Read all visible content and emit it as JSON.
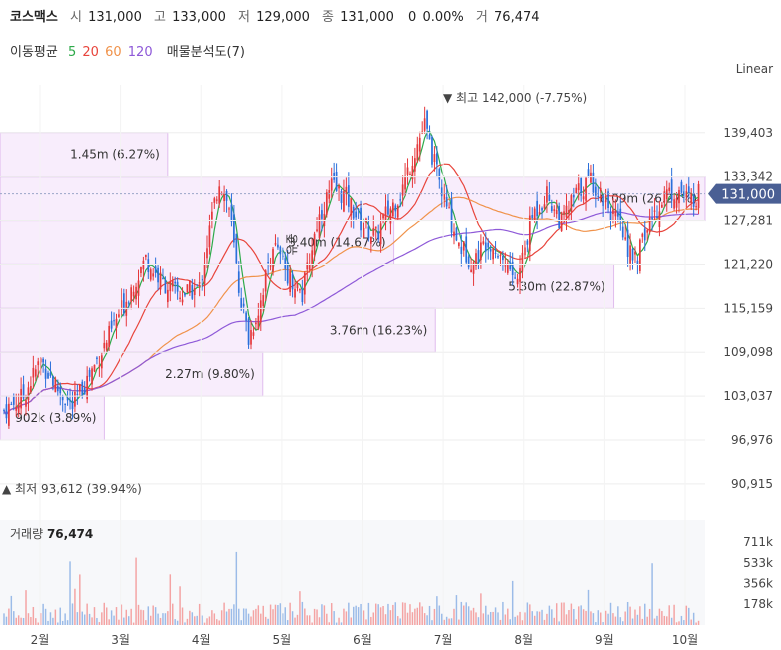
{
  "header": {
    "name": "코스맥스",
    "open_label": "시",
    "open": "131,000",
    "high_label": "고",
    "high": "133,000",
    "low_label": "저",
    "low": "129,000",
    "close_label": "종",
    "close": "131,000",
    "change": "0",
    "change_pct": "0.00%",
    "volume_label": "거",
    "volume": "76,474"
  },
  "indicators": {
    "ma_label": "이동평균",
    "ma": [
      {
        "period": "5",
        "color": "#2eaa4a"
      },
      {
        "period": "20",
        "color": "#e8453c"
      },
      {
        "period": "60",
        "color": "#f0924a"
      },
      {
        "period": "120",
        "color": "#8e59d8"
      }
    ],
    "profile_label": "매물분석도(7)"
  },
  "scale_label": "Linear",
  "chart_data": {
    "type": "candlestick",
    "y_ticks": [
      "139,403",
      "133,342",
      "127,281",
      "121,220",
      "115,159",
      "109,098",
      "103,037",
      "96,976",
      "90,915"
    ],
    "y_tick_values": [
      139403,
      133342,
      127281,
      121220,
      115159,
      109098,
      103037,
      96976,
      90915
    ],
    "ylim": [
      88000,
      146000
    ],
    "x_ticks": [
      "2월",
      "3월",
      "4월",
      "5월",
      "6월",
      "7월",
      "8월",
      "9월",
      "10월"
    ],
    "current_price": "131,000",
    "current_price_value": 131000,
    "high_marker": "최고 142,000 (-7.75%)",
    "high_value": 142000,
    "low_marker": "최저 93,612 (39.94%)",
    "low_value": 93612,
    "volume_title": "거래량",
    "volume_value": "76,474",
    "volume_ticks": [
      "711k",
      "533k",
      "356k",
      "178k"
    ],
    "volume_tick_values": [
      711000,
      533000,
      356000,
      178000
    ],
    "volume_max": 900000,
    "volume_profile": [
      {
        "label": "1.45m (6.27%)",
        "from": 133342,
        "to": 139403,
        "volume": 1450000
      },
      {
        "label": "6.09m (26.27%)",
        "from": 127281,
        "to": 133342,
        "volume": 6090000
      },
      {
        "label": "3.40m (14.67%)",
        "from": 121220,
        "to": 127281,
        "volume": 3400000
      },
      {
        "label": "5.30m (22.87%)",
        "from": 115159,
        "to": 121220,
        "volume": 5300000
      },
      {
        "label": "3.76m (16.23%)",
        "from": 109098,
        "to": 115159,
        "volume": 3760000
      },
      {
        "label": "2.27m (9.80%)",
        "from": 103037,
        "to": 109098,
        "volume": 2270000
      },
      {
        "label": "902k (3.89%)",
        "from": 96976,
        "to": 103037,
        "volume": 902000
      }
    ],
    "event_label": "유증",
    "event_value": 124000,
    "anchors": [
      [
        0,
        101000
      ],
      [
        8,
        103000
      ],
      [
        15,
        108000
      ],
      [
        22,
        104000
      ],
      [
        28,
        101500
      ],
      [
        35,
        106000
      ],
      [
        44,
        112000
      ],
      [
        52,
        118000
      ],
      [
        58,
        122000
      ],
      [
        64,
        119000
      ],
      [
        72,
        117000
      ],
      [
        80,
        118000
      ],
      [
        84,
        126000
      ],
      [
        88,
        133000
      ],
      [
        92,
        129000
      ],
      [
        96,
        118000
      ],
      [
        100,
        111000
      ],
      [
        104,
        115000
      ],
      [
        110,
        124000
      ],
      [
        116,
        120000
      ],
      [
        122,
        117000
      ],
      [
        128,
        127000
      ],
      [
        134,
        132000
      ],
      [
        140,
        130500
      ],
      [
        146,
        127000
      ],
      [
        152,
        125000
      ],
      [
        156,
        128000
      ],
      [
        162,
        131000
      ],
      [
        168,
        137000
      ],
      [
        172,
        140500
      ],
      [
        176,
        135000
      ],
      [
        180,
        130000
      ],
      [
        186,
        124000
      ],
      [
        192,
        121500
      ],
      [
        198,
        125000
      ],
      [
        204,
        122000
      ],
      [
        210,
        119000
      ],
      [
        216,
        128000
      ],
      [
        222,
        131000
      ],
      [
        228,
        127000
      ],
      [
        234,
        131000
      ],
      [
        240,
        133000
      ],
      [
        246,
        130000
      ],
      [
        252,
        126000
      ],
      [
        258,
        121500
      ],
      [
        264,
        127000
      ],
      [
        270,
        131000
      ],
      [
        276,
        131500
      ],
      [
        280,
        130000
      ],
      [
        284,
        131000
      ]
    ]
  }
}
